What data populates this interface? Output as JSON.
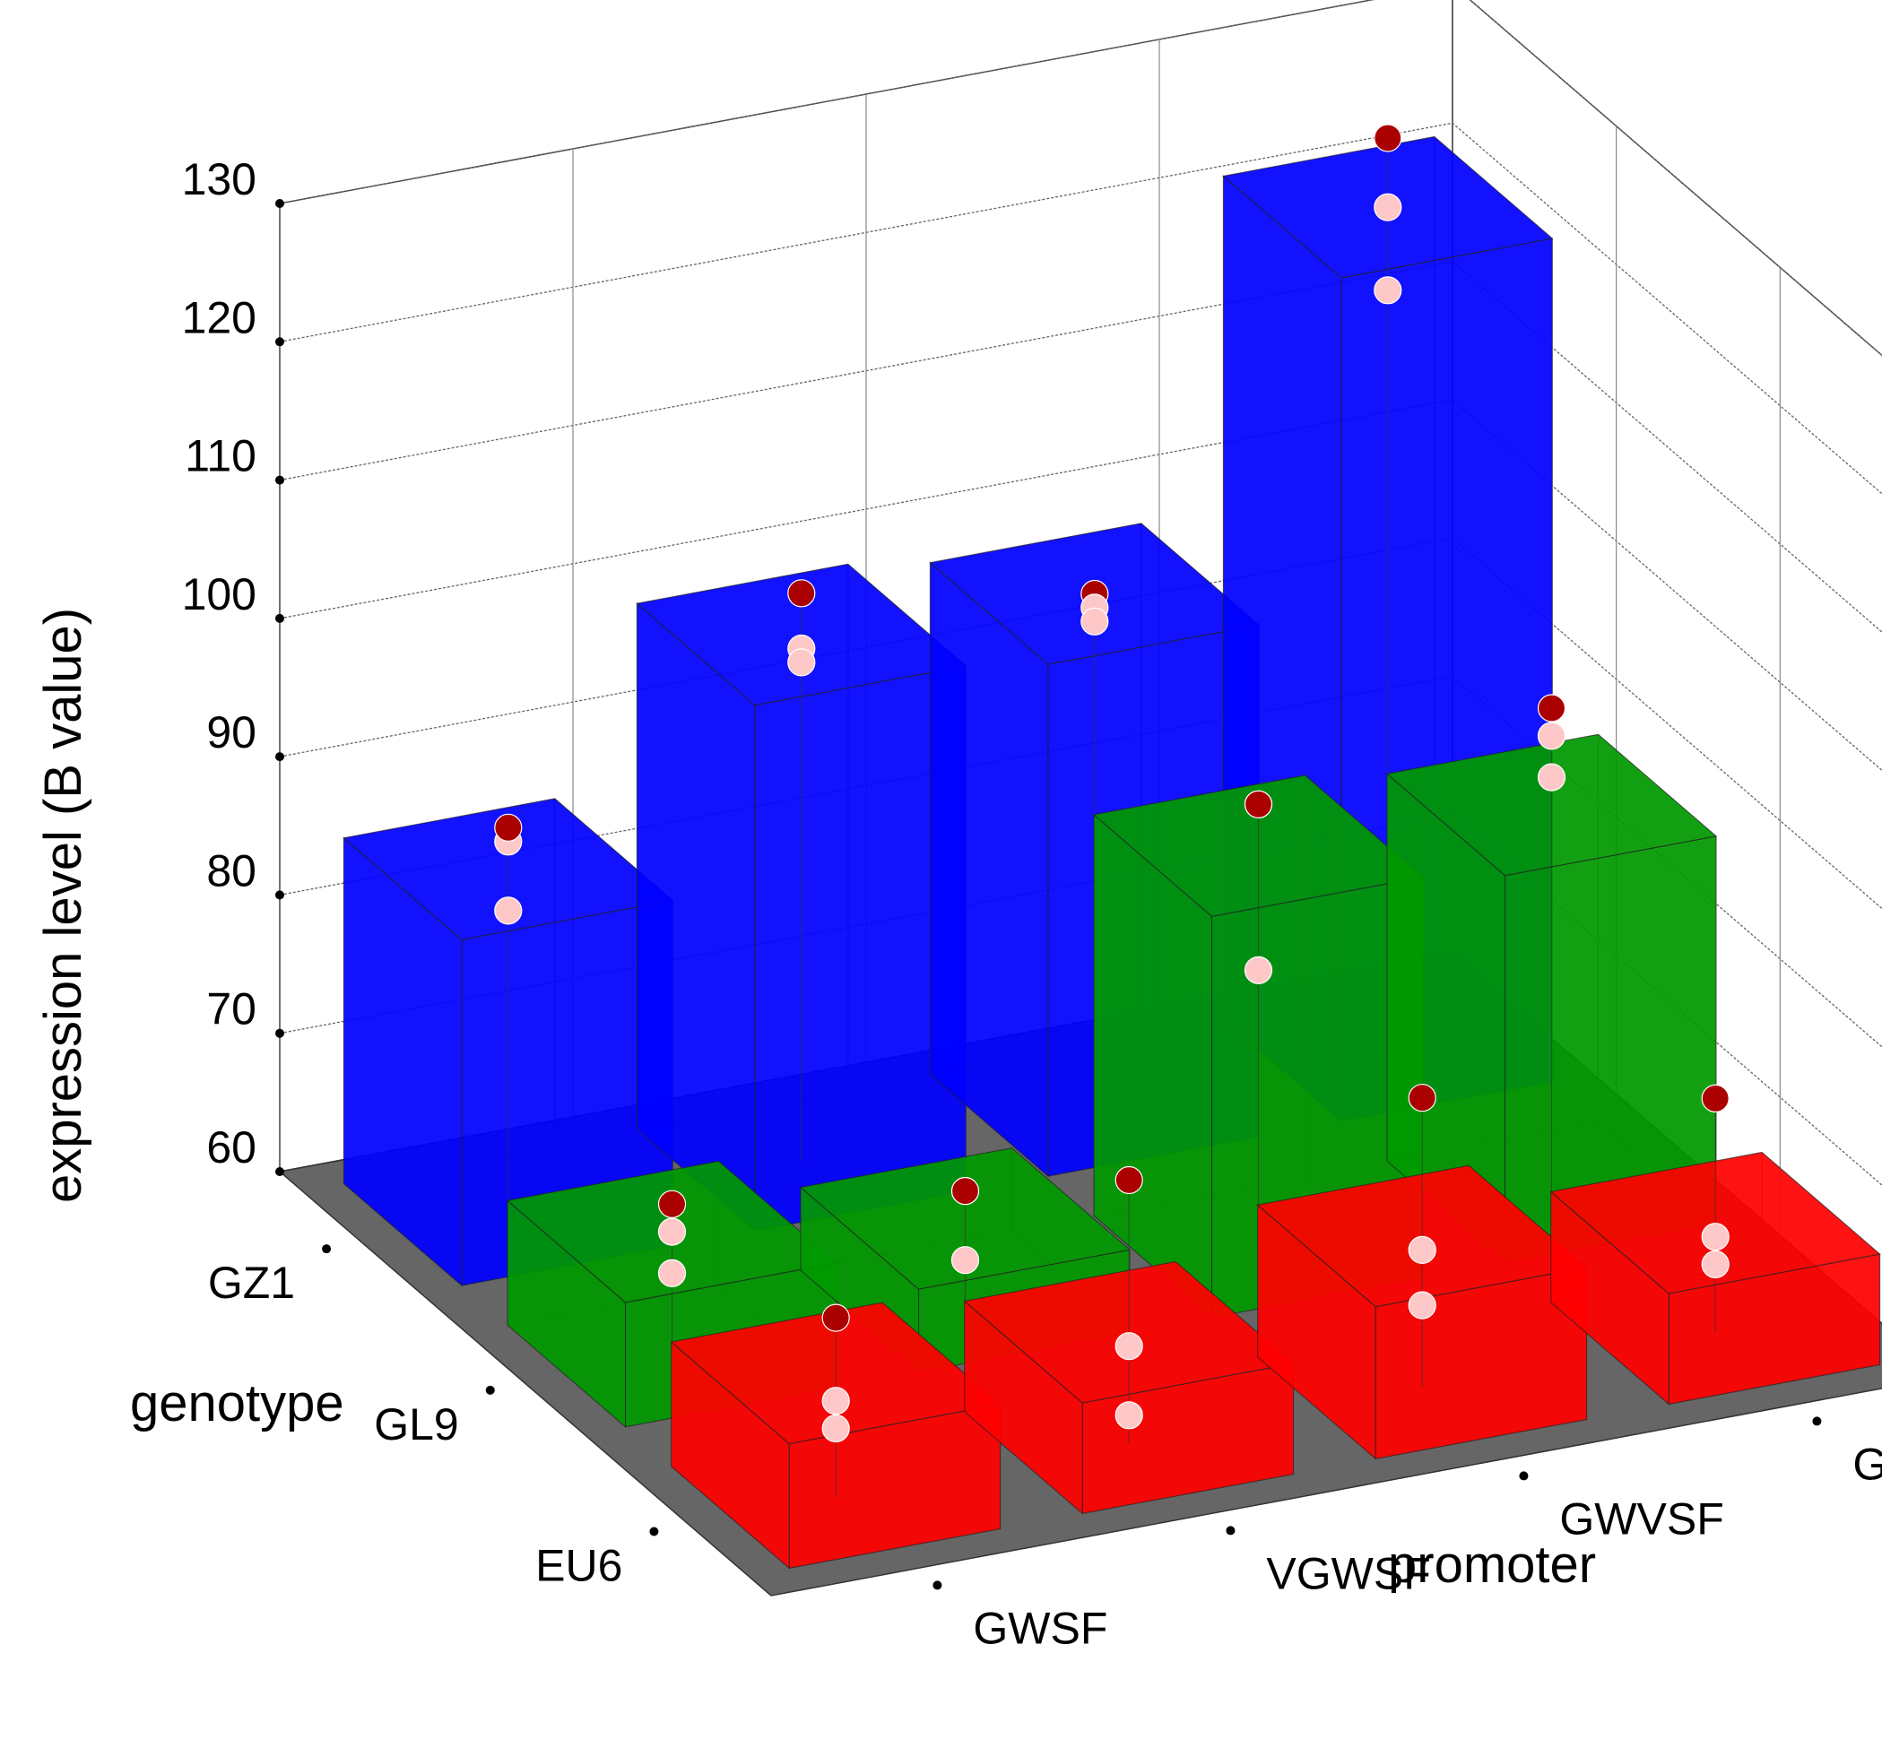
{
  "chart_data": {
    "type": "bar",
    "dimension": "3d",
    "zlabel": "expression level (B value)",
    "xlabel": "promoter",
    "ylabel": "genotype",
    "zlim": [
      60,
      130
    ],
    "zticks": [
      "60",
      "70",
      "80",
      "90",
      "100",
      "110",
      "120",
      "130"
    ],
    "promoters": [
      "GWSF",
      "VGWSF",
      "GWVSF",
      "GWSFV"
    ],
    "genotypes": [
      "GZ1",
      "GL9",
      "EU6"
    ],
    "grid": true,
    "floor_color": "#666666",
    "series": [
      {
        "genotype": "GZ1",
        "color": "#0000ff",
        "values": [
          85,
          98,
          97,
          121
        ],
        "points": [
          [
            87,
            88,
            82
          ],
          [
            101,
            97,
            96
          ],
          [
            97,
            96,
            95
          ],
          [
            126,
            121,
            115
          ]
        ]
      },
      {
        "genotype": "GL9",
        "color": "#009900",
        "values": [
          69,
          66,
          89,
          88
        ],
        "points": [
          [
            71,
            69,
            66
          ],
          [
            68,
            68,
            63
          ],
          [
            92,
            92,
            80
          ],
          [
            95,
            93,
            90
          ]
        ]
      },
      {
        "genotype": "EU6",
        "color": "#ff0000",
        "values": [
          69,
          68,
          71,
          68
        ],
        "points": [
          [
            73,
            67,
            65
          ],
          [
            79,
            67,
            62
          ],
          [
            81,
            70,
            66
          ],
          [
            77,
            67,
            65
          ]
        ]
      }
    ],
    "point_colors": {
      "high": "#aa0000",
      "low": "#ffc8c8"
    }
  }
}
